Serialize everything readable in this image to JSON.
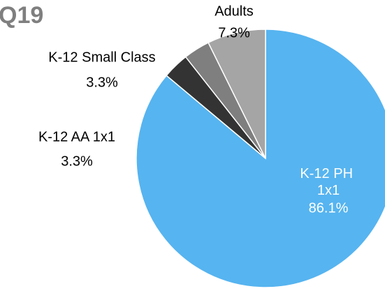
{
  "chart_data": {
    "type": "pie",
    "title": "Q19",
    "categories": [
      "K-12 PH 1x1",
      "K-12 AA 1x1",
      "K-12 Small Class",
      "Adults"
    ],
    "values": [
      86.1,
      3.3,
      3.3,
      7.3
    ],
    "value_labels": [
      "86.1%",
      "3.3%",
      "3.3%",
      "7.3%"
    ],
    "colors": [
      "#56b4f0",
      "#333333",
      "#7f7f7f",
      "#a5a5a5"
    ]
  }
}
